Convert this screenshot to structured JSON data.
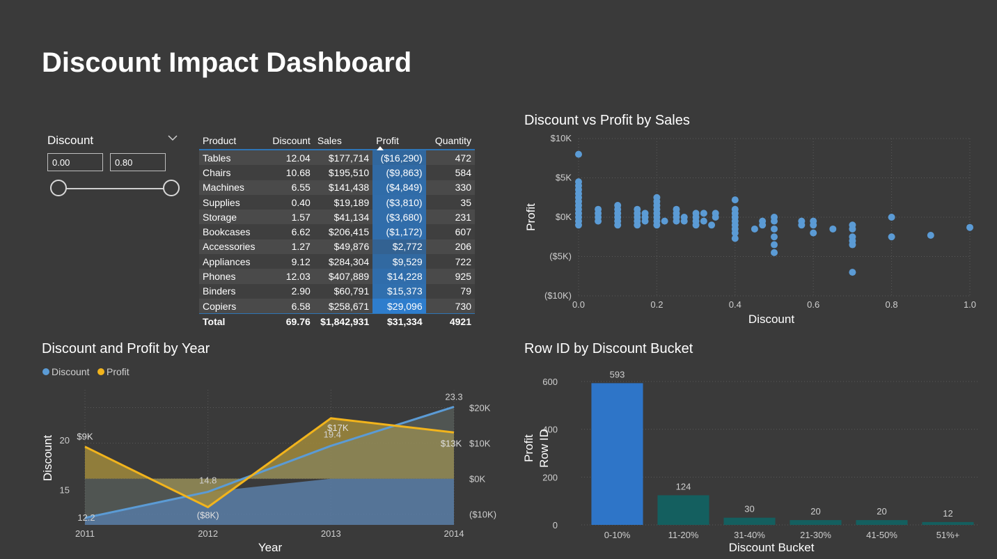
{
  "title": "Discount Impact Dashboard",
  "slicer": {
    "label": "Discount",
    "min_value": "0.00",
    "max_value": "0.80",
    "chevron_icon": "chevron-down-icon"
  },
  "table": {
    "columns": [
      "Product",
      "Discount",
      "Sales",
      "Profit",
      "Quantity"
    ],
    "sorted_column": "Profit",
    "rows": [
      [
        "Tables",
        "12.04",
        "$177,714",
        "($16,290)",
        "472"
      ],
      [
        "Chairs",
        "10.68",
        "$195,510",
        "($9,863)",
        "584"
      ],
      [
        "Machines",
        "6.55",
        "$141,438",
        "($4,849)",
        "330"
      ],
      [
        "Supplies",
        "0.40",
        "$19,189",
        "($3,810)",
        "35"
      ],
      [
        "Storage",
        "1.57",
        "$41,134",
        "($3,680)",
        "231"
      ],
      [
        "Bookcases",
        "6.62",
        "$206,415",
        "($1,172)",
        "607"
      ],
      [
        "Accessories",
        "1.27",
        "$49,876",
        "$2,772",
        "206"
      ],
      [
        "Appliances",
        "9.12",
        "$284,304",
        "$9,529",
        "722"
      ],
      [
        "Phones",
        "12.03",
        "$407,889",
        "$14,228",
        "925"
      ],
      [
        "Binders",
        "2.90",
        "$60,791",
        "$15,373",
        "79"
      ],
      [
        "Copiers",
        "6.58",
        "$258,671",
        "$29,096",
        "730"
      ]
    ],
    "profit_values": [
      -16290,
      -9863,
      -4849,
      -3810,
      -3680,
      -1172,
      2772,
      9529,
      14228,
      15373,
      29096
    ],
    "total": [
      "Total",
      "69.76",
      "$1,842,931",
      "$31,334",
      "4921"
    ]
  },
  "chart_data": [
    {
      "id": "scatter",
      "type": "scatter",
      "title": "Discount vs Profit by Sales",
      "xlabel": "Discount",
      "ylabel": "Profit",
      "xlim": [
        0,
        1.0
      ],
      "ylim": [
        -10000,
        10000
      ],
      "x_ticks": [
        "0.0",
        "0.2",
        "0.4",
        "0.6",
        "0.8",
        "1.0"
      ],
      "y_ticks": [
        "$10K",
        "$5K",
        "$0K",
        "($5K)",
        "($10K)"
      ],
      "color": "#5b9bd5",
      "points": [
        [
          0,
          8000
        ],
        [
          0,
          4500
        ],
        [
          0,
          4000
        ],
        [
          0,
          3500
        ],
        [
          0,
          3000
        ],
        [
          0,
          2500
        ],
        [
          0,
          2000
        ],
        [
          0,
          1500
        ],
        [
          0,
          1000
        ],
        [
          0,
          500
        ],
        [
          0,
          0
        ],
        [
          0,
          -500
        ],
        [
          0,
          -1000
        ],
        [
          0.05,
          1000
        ],
        [
          0.05,
          500
        ],
        [
          0.05,
          0
        ],
        [
          0.05,
          -500
        ],
        [
          0.1,
          1500
        ],
        [
          0.1,
          1000
        ],
        [
          0.1,
          500
        ],
        [
          0.1,
          0
        ],
        [
          0.1,
          -500
        ],
        [
          0.1,
          -1000
        ],
        [
          0.15,
          1000
        ],
        [
          0.15,
          500
        ],
        [
          0.15,
          0
        ],
        [
          0.15,
          -500
        ],
        [
          0.15,
          -1000
        ],
        [
          0.17,
          500
        ],
        [
          0.17,
          0
        ],
        [
          0.17,
          -500
        ],
        [
          0.2,
          2500
        ],
        [
          0.2,
          2000
        ],
        [
          0.2,
          1500
        ],
        [
          0.2,
          1000
        ],
        [
          0.2,
          500
        ],
        [
          0.2,
          0
        ],
        [
          0.2,
          -500
        ],
        [
          0.2,
          -1000
        ],
        [
          0.22,
          -500
        ],
        [
          0.25,
          1000
        ],
        [
          0.25,
          500
        ],
        [
          0.25,
          0
        ],
        [
          0.25,
          -500
        ],
        [
          0.27,
          0
        ],
        [
          0.27,
          -500
        ],
        [
          0.3,
          500
        ],
        [
          0.3,
          0
        ],
        [
          0.3,
          -500
        ],
        [
          0.3,
          -1000
        ],
        [
          0.32,
          500
        ],
        [
          0.32,
          -500
        ],
        [
          0.34,
          -1000
        ],
        [
          0.35,
          500
        ],
        [
          0.35,
          0
        ],
        [
          0.4,
          2200
        ],
        [
          0.4,
          1000
        ],
        [
          0.4,
          500
        ],
        [
          0.4,
          0
        ],
        [
          0.4,
          -500
        ],
        [
          0.4,
          -1000
        ],
        [
          0.4,
          -1500
        ],
        [
          0.4,
          -2000
        ],
        [
          0.4,
          -2700
        ],
        [
          0.45,
          -1500
        ],
        [
          0.47,
          -500
        ],
        [
          0.47,
          -1000
        ],
        [
          0.5,
          0
        ],
        [
          0.5,
          -500
        ],
        [
          0.5,
          -1500
        ],
        [
          0.5,
          -2500
        ],
        [
          0.5,
          -3500
        ],
        [
          0.5,
          -4500
        ],
        [
          0.57,
          -500
        ],
        [
          0.57,
          -1000
        ],
        [
          0.6,
          -500
        ],
        [
          0.6,
          -1000
        ],
        [
          0.6,
          -2000
        ],
        [
          0.65,
          -1500
        ],
        [
          0.7,
          -1000
        ],
        [
          0.7,
          -1500
        ],
        [
          0.7,
          -2500
        ],
        [
          0.7,
          -3000
        ],
        [
          0.7,
          -3500
        ],
        [
          0.7,
          -7000
        ],
        [
          0.8,
          0
        ],
        [
          0.8,
          -2500
        ],
        [
          0.9,
          -2300
        ],
        [
          1.0,
          -1300
        ]
      ]
    },
    {
      "id": "combo",
      "type": "line",
      "title": "Discount and Profit by Year",
      "xlabel": "Year",
      "ylabel": "Discount",
      "x": [
        "2011",
        "2012",
        "2013",
        "2014"
      ],
      "series": [
        {
          "name": "Discount",
          "values": [
            12.2,
            14.8,
            19.4,
            23.3
          ],
          "labels": [
            "12.2",
            "14.8",
            "19.4",
            "23.3"
          ],
          "color": "#5b9bd5",
          "axis": "left"
        },
        {
          "name": "Profit",
          "values": [
            9000,
            -8000,
            17000,
            13000
          ],
          "labels": [
            "$9K",
            "($8K)",
            "$17K",
            "$13K"
          ],
          "color": "#f2b41c",
          "axis": "right"
        }
      ],
      "left_ylim": [
        11.5,
        25.0
      ],
      "left_ticks": [
        15,
        20
      ],
      "right_ylim": [
        -13000,
        25000
      ],
      "right_ticks": [
        "$20K",
        "$10K",
        "$0K",
        "($10K)"
      ],
      "right_tick_values": [
        20000,
        10000,
        0,
        -10000
      ],
      "legend": "top-left"
    },
    {
      "id": "bar",
      "type": "bar",
      "title": "Row ID by Discount Bucket",
      "xlabel": "Discount Bucket",
      "ylabel": "Row ID",
      "overlay_label": "Profit",
      "categories": [
        "0-10%",
        "11-20%",
        "31-40%",
        "21-30%",
        "41-50%",
        "51%+"
      ],
      "values": [
        593,
        124,
        30,
        20,
        20,
        12
      ],
      "colors": [
        "#2e75c8",
        "#145f5f",
        "#145f5f",
        "#145f5f",
        "#145f5f",
        "#145f5f"
      ],
      "ylim": [
        0,
        600
      ],
      "y_ticks": [
        0,
        200,
        400,
        600
      ]
    }
  ]
}
